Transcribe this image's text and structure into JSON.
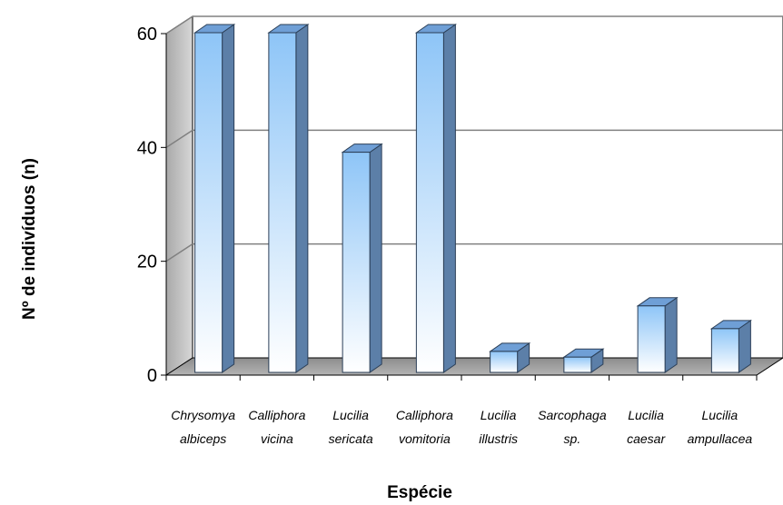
{
  "chart_data": {
    "type": "bar",
    "title": "",
    "xlabel": "Espécie",
    "ylabel": "Nº de indivíduos (n)",
    "ylim": [
      0,
      60
    ],
    "yticks": [
      0,
      20,
      40,
      60
    ],
    "yticks_text": [
      "0",
      "20",
      "40",
      "60"
    ],
    "grid": true,
    "categories": [
      [
        "Chrysomya",
        "albiceps"
      ],
      [
        "Calliphora",
        "vicina"
      ],
      [
        "Lucilia",
        "sericata"
      ],
      [
        "Calliphora",
        "vomitoria"
      ],
      [
        "Lucilia",
        "illustris"
      ],
      [
        "Sarcophaga",
        "sp."
      ],
      [
        "Lucilia",
        "caesar"
      ],
      [
        "Lucilia",
        "ampullacea"
      ]
    ],
    "values": [
      60,
      60,
      39,
      60,
      4,
      3,
      12,
      8
    ],
    "colors": {
      "bar_top": "#8ec5f7",
      "bar_bottom": "#ffffff",
      "bar_side": "#5c7fa8",
      "bar_cap": "#6f9fd6",
      "wall": "#c8c8c8",
      "floor": "#9a9a9a",
      "grid": "#808080"
    }
  }
}
